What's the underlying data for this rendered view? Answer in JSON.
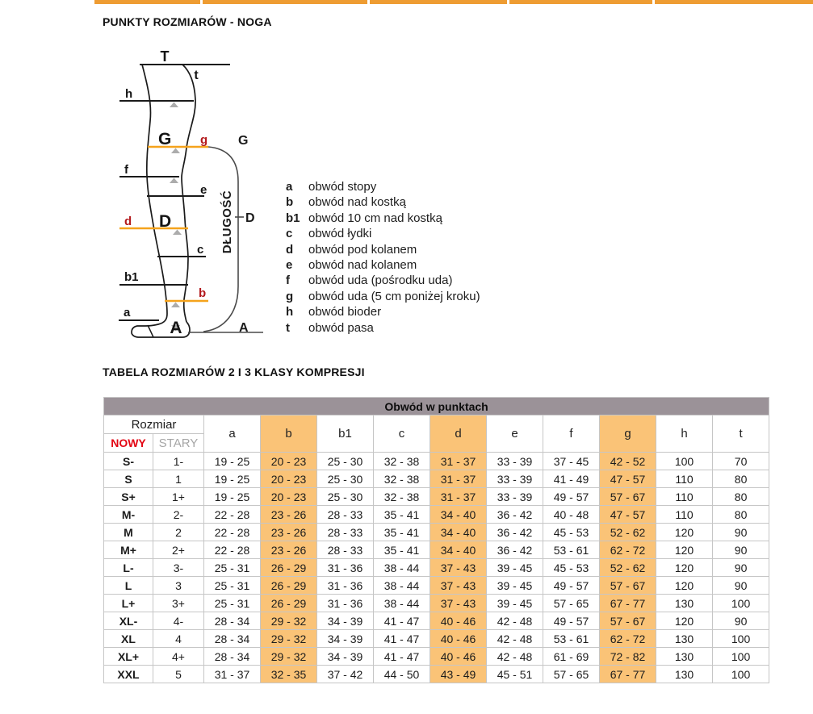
{
  "header": {
    "section1_title": "PUNKTY ROZMIARÓW - NOGA",
    "section2_title": "TABELA ROZMIARÓW 2 I 3 KLASY KOMPRESJI"
  },
  "nav": {
    "tab_color": "#ee9c32",
    "tab_count": 5
  },
  "diagram": {
    "point_labels": {
      "T": "T",
      "t": "t",
      "h": "h",
      "G": "G",
      "g": "g",
      "f": "f",
      "e": "e",
      "D": "D",
      "d": "d",
      "c": "c",
      "b1": "b1",
      "b": "b",
      "a": "a",
      "A": "A"
    },
    "bracket": {
      "top": "G",
      "mid": "D",
      "bottom": "A",
      "length_label": "DŁUGOŚĆ"
    },
    "colors": {
      "highlight_line": "#f5a31c",
      "highlight_label": "#b3191c",
      "marker": "#acacac",
      "outline": "#1a1a1a"
    }
  },
  "legend": {
    "items": [
      {
        "key": "a",
        "text": "obwód stopy"
      },
      {
        "key": "b",
        "text": "obwód nad kostką"
      },
      {
        "key": "b1",
        "text": "obwód 10 cm nad kostką"
      },
      {
        "key": "c",
        "text": "obwód łydki"
      },
      {
        "key": "d",
        "text": "obwód pod kolanem"
      },
      {
        "key": "e",
        "text": "obwód nad kolanem"
      },
      {
        "key": "f",
        "text": "obwód uda (pośrodku uda)"
      },
      {
        "key": "g",
        "text": "obwód uda (5 cm poniżej kroku)"
      },
      {
        "key": "h",
        "text": "obwód bioder"
      },
      {
        "key": "t",
        "text": "obwód pasa"
      }
    ]
  },
  "table": {
    "span_header": "Obwód w punktach",
    "size_header": "Rozmiar",
    "new_label": "NOWY",
    "old_label": "STARY",
    "point_columns": [
      "a",
      "b",
      "b1",
      "c",
      "d",
      "e",
      "f",
      "g",
      "h",
      "t"
    ],
    "highlighted_columns": [
      "b",
      "d",
      "g"
    ],
    "colors": {
      "header_bar": "#9b9298",
      "highlight": "#fac377",
      "new_label": "#e30613",
      "old_label": "#a6a6a6"
    },
    "rows": [
      {
        "new": "S-",
        "old": "1-",
        "values": [
          "19 - 25",
          "20 - 23",
          "25 - 30",
          "32 - 38",
          "31 - 37",
          "33 - 39",
          "37 - 45",
          "42 - 52",
          "100",
          "70"
        ]
      },
      {
        "new": "S",
        "old": "1",
        "values": [
          "19 - 25",
          "20 - 23",
          "25 - 30",
          "32 - 38",
          "31 - 37",
          "33 - 39",
          "41 - 49",
          "47 - 57",
          "110",
          "80"
        ]
      },
      {
        "new": "S+",
        "old": "1+",
        "values": [
          "19 - 25",
          "20 - 23",
          "25 - 30",
          "32 - 38",
          "31 - 37",
          "33 - 39",
          "49 - 57",
          "57 - 67",
          "110",
          "80"
        ]
      },
      {
        "new": "M-",
        "old": "2-",
        "values": [
          "22 - 28",
          "23 - 26",
          "28 - 33",
          "35 - 41",
          "34 - 40",
          "36 - 42",
          "40 - 48",
          "47 - 57",
          "110",
          "80"
        ]
      },
      {
        "new": "M",
        "old": "2",
        "values": [
          "22 - 28",
          "23 - 26",
          "28 - 33",
          "35 - 41",
          "34 - 40",
          "36 - 42",
          "45 - 53",
          "52 - 62",
          "120",
          "90"
        ]
      },
      {
        "new": "M+",
        "old": "2+",
        "values": [
          "22 - 28",
          "23 - 26",
          "28 - 33",
          "35 - 41",
          "34 - 40",
          "36 - 42",
          "53 - 61",
          "62 - 72",
          "120",
          "90"
        ]
      },
      {
        "new": "L-",
        "old": "3-",
        "values": [
          "25 - 31",
          "26 - 29",
          "31 - 36",
          "38 - 44",
          "37 - 43",
          "39 - 45",
          "45 - 53",
          "52 - 62",
          "120",
          "90"
        ]
      },
      {
        "new": "L",
        "old": "3",
        "values": [
          "25 - 31",
          "26 - 29",
          "31 - 36",
          "38 - 44",
          "37 - 43",
          "39 - 45",
          "49 - 57",
          "57 - 67",
          "120",
          "90"
        ]
      },
      {
        "new": "L+",
        "old": "3+",
        "values": [
          "25 - 31",
          "26 - 29",
          "31 - 36",
          "38 - 44",
          "37 - 43",
          "39 - 45",
          "57 - 65",
          "67 - 77",
          "130",
          "100"
        ]
      },
      {
        "new": "XL-",
        "old": "4-",
        "values": [
          "28 - 34",
          "29 - 32",
          "34 - 39",
          "41 - 47",
          "40 - 46",
          "42 - 48",
          "49 - 57",
          "57 - 67",
          "120",
          "90"
        ]
      },
      {
        "new": "XL",
        "old": "4",
        "values": [
          "28 - 34",
          "29 - 32",
          "34 - 39",
          "41 - 47",
          "40 - 46",
          "42 - 48",
          "53 - 61",
          "62 - 72",
          "130",
          "100"
        ]
      },
      {
        "new": "XL+",
        "old": "4+",
        "values": [
          "28 - 34",
          "29 - 32",
          "34 - 39",
          "41 - 47",
          "40 - 46",
          "42 - 48",
          "61 - 69",
          "72 - 82",
          "130",
          "100"
        ]
      },
      {
        "new": "XXL",
        "old": "5",
        "values": [
          "31 - 37",
          "32 - 35",
          "37 - 42",
          "44 - 50",
          "43 - 49",
          "45 - 51",
          "57 - 65",
          "67 - 77",
          "130",
          "100"
        ]
      }
    ]
  }
}
